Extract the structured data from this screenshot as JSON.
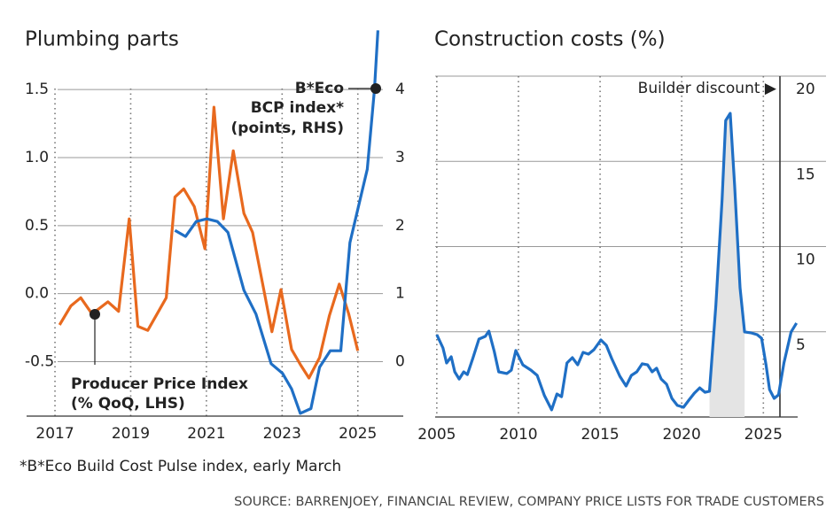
{
  "chart_data": [
    {
      "type": "line",
      "title": "Plumbing parts",
      "xlim": [
        2016.25,
        2026.2
      ],
      "xticks": [
        2017,
        2019,
        2021,
        2023,
        2025
      ],
      "ylim": [
        -0.9,
        1.95
      ],
      "yticks": [
        -0.5,
        {
          "value": 0,
          "label": "0.0"
        },
        0.5,
        {
          "value": 1,
          "label": "1.0"
        },
        1.5
      ],
      "y2lim": [
        -0.8,
        4.9
      ],
      "y2ticks": [
        0,
        1,
        2,
        3,
        4
      ],
      "grid": true,
      "xgrid": true,
      "series": [
        {
          "color": "#e8691e",
          "axis": "y",
          "x": [
            2017.12,
            2017.42,
            2017.68,
            2017.98,
            2018.4,
            2018.68,
            2018.96,
            2019.19,
            2019.45,
            2019.94,
            2020.17,
            2020.4,
            2020.68,
            2020.96,
            2021.2,
            2021.45,
            2021.71,
            2021.99,
            2022.22,
            2022.5,
            2022.73,
            2022.97,
            2023.25,
            2023.48,
            2023.71,
            2023.99,
            2024.25,
            2024.51,
            2024.76,
            2025.0
          ],
          "values": [
            -0.23,
            -0.09,
            -0.03,
            -0.15,
            -0.06,
            -0.13,
            0.55,
            -0.24,
            -0.27,
            -0.03,
            0.71,
            0.77,
            0.64,
            0.33,
            1.37,
            0.55,
            1.05,
            0.59,
            0.45,
            0.05,
            -0.28,
            0.03,
            -0.41,
            -0.52,
            -0.62,
            -0.47,
            -0.16,
            0.07,
            -0.15,
            -0.42
          ]
        },
        {
          "color": "#1f6fc5",
          "axis": "y2",
          "x": [
            2020.17,
            2020.45,
            2020.73,
            2021.01,
            2021.29,
            2021.57,
            2021.99,
            2022.31,
            2022.71,
            2023.01,
            2023.25,
            2023.48,
            2023.76,
            2023.99,
            2024.27,
            2024.55,
            2024.79,
            2025.25,
            2025.44,
            2025.53
          ],
          "values": [
            1.93,
            1.84,
            2.06,
            2.1,
            2.06,
            1.9,
            1.05,
            0.7,
            -0.03,
            -0.17,
            -0.4,
            -0.76,
            -0.69,
            -0.08,
            0.16,
            0.16,
            1.75,
            2.83,
            4.0,
            4.87
          ]
        }
      ],
      "annotations": [
        {
          "lines": [
            "B*Eco",
            "BCP index*",
            "(points, RHS)"
          ]
        },
        {
          "lines": [
            "Producer Price Index",
            "(% QoQ, LHS)"
          ]
        }
      ]
    },
    {
      "type": "line",
      "title": "Construction costs (%)",
      "xlim": [
        2004.9,
        2027.1
      ],
      "xticks": [
        2005,
        2010,
        2015,
        2020,
        2025
      ],
      "ylim": [
        0,
        20
      ],
      "yticks": [
        5,
        10,
        15,
        20
      ],
      "grid": true,
      "xgrid": true,
      "series": [
        {
          "color": "#1f6fc5",
          "axis": "y",
          "x": [
            2005.0,
            2005.38,
            2005.6,
            2005.88,
            2006.1,
            2006.37,
            2006.65,
            2006.87,
            2007.2,
            2007.58,
            2007.97,
            2008.19,
            2008.52,
            2008.79,
            2009.29,
            2009.56,
            2009.84,
            2010.27,
            2010.77,
            2011.15,
            2011.59,
            2012.03,
            2012.36,
            2012.64,
            2012.97,
            2013.3,
            2013.63,
            2013.96,
            2014.29,
            2014.62,
            2015.05,
            2015.38,
            2015.71,
            2016.21,
            2016.59,
            2016.92,
            2017.25,
            2017.58,
            2017.91,
            2018.19,
            2018.46,
            2018.74,
            2019.07,
            2019.4,
            2019.73,
            2020.11,
            2020.44,
            2020.77,
            2021.1,
            2021.43,
            2021.7,
            2022.09,
            2022.47,
            2022.69,
            2022.97,
            2023.24,
            2023.57,
            2023.85,
            2024.23,
            2024.62,
            2024.89,
            2025.16,
            2025.38,
            2025.66,
            2025.93,
            2026.26,
            2026.7,
            2027.03
          ],
          "values": [
            4.83,
            4.05,
            3.17,
            3.53,
            2.65,
            2.23,
            2.65,
            2.49,
            3.43,
            4.57,
            4.73,
            5.04,
            3.84,
            2.65,
            2.55,
            2.75,
            3.9,
            3.06,
            2.75,
            2.44,
            1.25,
            0.42,
            1.35,
            1.19,
            3.17,
            3.48,
            3.06,
            3.79,
            3.69,
            3.95,
            4.52,
            4.21,
            3.43,
            2.39,
            1.82,
            2.44,
            2.65,
            3.12,
            3.06,
            2.65,
            2.86,
            2.23,
            1.92,
            1.09,
            0.68,
            0.57,
            0.99,
            1.4,
            1.71,
            1.45,
            1.51,
            6.55,
            12.73,
            17.4,
            17.82,
            13.56,
            7.58,
            4.99,
            4.94,
            4.83,
            4.62,
            3.06,
            1.61,
            1.09,
            1.3,
            3.17,
            4.99,
            5.51
          ]
        }
      ],
      "annotations": [
        {
          "lines": [
            "Builder discount ▶"
          ]
        }
      ]
    }
  ],
  "footnote": "*B*Eco Build Cost Pulse index, early March",
  "source": "SOURCE: BARRENJOEY, FINANCIAL REVIEW, COMPANY PRICE LISTS FOR TRADE CUSTOMERS"
}
